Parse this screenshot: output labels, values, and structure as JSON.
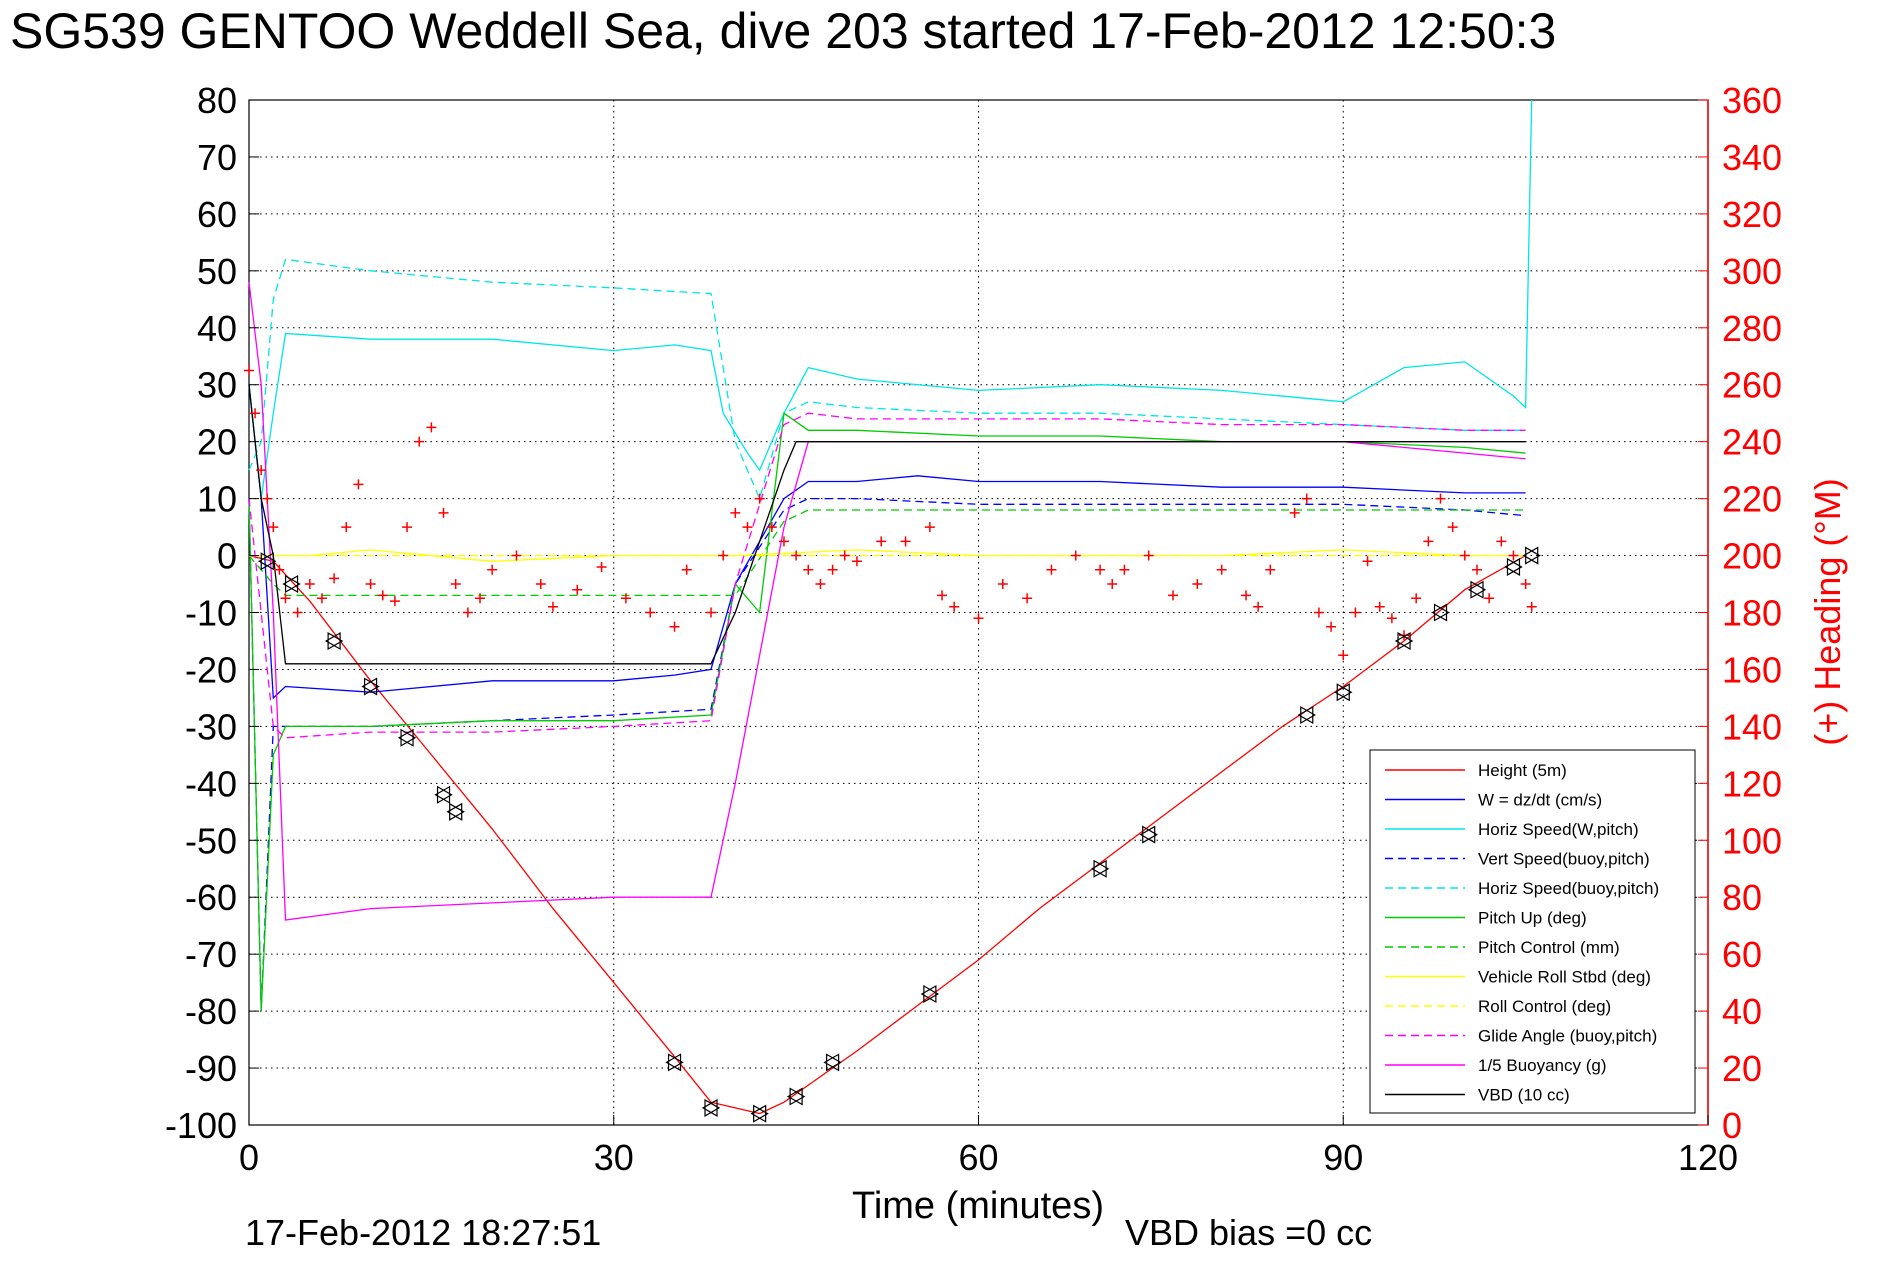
{
  "chart_data": {
    "type": "line",
    "title": "SG539 GENTOO Weddell Sea, dive 203 started 17-Feb-2012 12:50:3",
    "xlabel": "Time (minutes)",
    "ylabel": "",
    "y2label": "(+) Heading (°M)",
    "xlim": [
      0,
      120
    ],
    "ylim": [
      -100,
      80
    ],
    "y2lim": [
      0,
      360
    ],
    "xticks": [
      "0",
      "30",
      "60",
      "90",
      "120"
    ],
    "yticks": [
      "80",
      "70",
      "60",
      "50",
      "40",
      "30",
      "20",
      "10",
      "0",
      "-10",
      "-20",
      "-30",
      "-40",
      "-50",
      "-60",
      "-70",
      "-80",
      "-90",
      "-100"
    ],
    "y2ticks": [
      "360",
      "340",
      "320",
      "300",
      "280",
      "260",
      "240",
      "220",
      "200",
      "180",
      "160",
      "140",
      "120",
      "100",
      "80",
      "60",
      "40",
      "20",
      "0"
    ],
    "grid": true,
    "legend_position": "bottom-right",
    "footer_left": "17-Feb-2012 18:27:51",
    "footer_right": "VBD bias =0 cc",
    "series": [
      {
        "name": "Height (5m)",
        "color": "#ff0000",
        "style": "solid",
        "x": [
          0,
          2,
          5,
          10,
          15,
          20,
          25,
          30,
          35,
          38,
          40,
          42,
          44,
          46,
          50,
          55,
          60,
          65,
          70,
          75,
          80,
          85,
          90,
          95,
          100,
          105
        ],
        "y": [
          0,
          -1,
          -8,
          -22,
          -35,
          -48,
          -62,
          -75,
          -88,
          -96,
          -97,
          -98,
          -96,
          -93,
          -87,
          -79,
          -71,
          -62,
          -54,
          -46,
          -38,
          -30,
          -23,
          -15,
          -6,
          0
        ]
      },
      {
        "name": "W = dz/dt (cm/s)",
        "color": "#0000ff",
        "style": "solid",
        "x": [
          0,
          1,
          2,
          3,
          10,
          20,
          30,
          35,
          38,
          40,
          44,
          46,
          50,
          55,
          60,
          70,
          80,
          90,
          100,
          105
        ],
        "y": [
          30,
          10,
          -25,
          -23,
          -24,
          -22,
          -22,
          -21,
          -20,
          -5,
          10,
          13,
          13,
          14,
          13,
          13,
          12,
          12,
          11,
          11
        ]
      },
      {
        "name": "Horiz Speed(W,pitch)",
        "color": "#00e6e6",
        "style": "solid",
        "x": [
          0,
          1,
          2,
          3,
          10,
          20,
          30,
          35,
          38,
          39,
          41,
          42,
          44,
          46,
          50,
          60,
          70,
          80,
          90,
          95,
          100,
          104,
          105,
          105.5
        ],
        "y": [
          30,
          10,
          25,
          39,
          38,
          38,
          36,
          37,
          36,
          25,
          18,
          15,
          25,
          33,
          31,
          29,
          30,
          29,
          27,
          33,
          34,
          28,
          26,
          80
        ]
      },
      {
        "name": "Vert Speed(buoy,pitch)",
        "color": "#0000ff",
        "style": "dashed",
        "x": [
          0,
          1,
          2,
          3,
          10,
          20,
          30,
          38,
          40,
          44,
          46,
          50,
          60,
          70,
          80,
          90,
          100,
          105
        ],
        "y": [
          10,
          -80,
          -30,
          -30,
          -30,
          -29,
          -28,
          -27,
          -5,
          8,
          10,
          10,
          9,
          9,
          9,
          9,
          8,
          7
        ]
      },
      {
        "name": "Horiz Speed(buoy,pitch)",
        "color": "#00e6e6",
        "style": "dashed",
        "x": [
          0,
          1,
          2,
          3,
          10,
          20,
          30,
          38,
          40,
          42,
          44,
          46,
          50,
          60,
          70,
          80,
          90,
          100,
          105
        ],
        "y": [
          15,
          20,
          45,
          52,
          50,
          48,
          47,
          46,
          20,
          10,
          25,
          27,
          26,
          25,
          25,
          24,
          23,
          22,
          22
        ]
      },
      {
        "name": "Pitch Up (deg)",
        "color": "#00cc00",
        "style": "solid",
        "x": [
          0,
          1,
          2,
          3,
          10,
          20,
          30,
          38,
          40,
          42,
          44,
          46,
          50,
          60,
          70,
          80,
          90,
          100,
          105
        ],
        "y": [
          10,
          -80,
          -35,
          -30,
          -30,
          -29,
          -29,
          -28,
          -5,
          -10,
          25,
          22,
          22,
          21,
          21,
          20,
          20,
          19,
          18
        ]
      },
      {
        "name": "Pitch Control (mm)",
        "color": "#00cc00",
        "style": "dashed",
        "x": [
          0,
          2,
          3,
          38,
          40,
          44,
          46,
          105
        ],
        "y": [
          0,
          -5,
          -7,
          -7,
          -7,
          6,
          8,
          8
        ]
      },
      {
        "name": "Vehicle Roll Stbd (deg)",
        "color": "#ffff00",
        "style": "solid",
        "x": [
          0,
          5,
          10,
          20,
          30,
          40,
          50,
          60,
          70,
          80,
          90,
          100,
          105
        ],
        "y": [
          0,
          0,
          1,
          -1,
          0,
          0,
          1,
          0,
          0,
          0,
          1,
          0,
          0
        ]
      },
      {
        "name": "Roll Control (deg)",
        "color": "#ffff00",
        "style": "dashed",
        "x": [
          0,
          5,
          10,
          20,
          30,
          40,
          50,
          60,
          70,
          80,
          90,
          100,
          105
        ],
        "y": [
          0,
          0,
          0,
          0,
          0,
          0,
          0,
          0,
          0,
          0,
          0,
          0,
          0
        ]
      },
      {
        "name": "Glide Angle (buoy,pitch)",
        "color": "#ff00ff",
        "style": "dashed",
        "x": [
          0,
          2,
          3,
          10,
          20,
          30,
          38,
          40,
          44,
          46,
          50,
          60,
          70,
          80,
          90,
          100,
          105
        ],
        "y": [
          10,
          -30,
          -32,
          -31,
          -31,
          -30,
          -29,
          -5,
          23,
          25,
          24,
          24,
          24,
          23,
          23,
          22,
          22
        ]
      },
      {
        "name": "1/5 Buoyancy (g)",
        "color": "#ff00ff",
        "style": "solid",
        "x": [
          0,
          1,
          2,
          3,
          10,
          20,
          30,
          38,
          40,
          44,
          46,
          60,
          80,
          90,
          100,
          105
        ],
        "y": [
          48,
          30,
          -10,
          -64,
          -62,
          -61,
          -60,
          -60,
          -40,
          5,
          20,
          20,
          20,
          20,
          18,
          17
        ]
      },
      {
        "name": "VBD (10 cc)",
        "color": "#000000",
        "style": "solid",
        "x": [
          0,
          1,
          2,
          3,
          38,
          40,
          44,
          45,
          60,
          80,
          90,
          100,
          105
        ],
        "y": [
          30,
          10,
          0,
          -19,
          -19,
          -10,
          15,
          20,
          20,
          20,
          20,
          20,
          20
        ]
      }
    ],
    "heading": {
      "name": "(+) Heading",
      "color": "#ff0000",
      "x": [
        0,
        0.5,
        1,
        1.5,
        2,
        2.5,
        3,
        4,
        5,
        6,
        7,
        8,
        9,
        10,
        11,
        12,
        13,
        14,
        15,
        16,
        17,
        18,
        19,
        20,
        22,
        24,
        25,
        27,
        29,
        31,
        33,
        35,
        36,
        38,
        39,
        40,
        41,
        42,
        43,
        44,
        45,
        46,
        47,
        48,
        49,
        50,
        52,
        54,
        56,
        57,
        58,
        60,
        62,
        64,
        66,
        68,
        70,
        71,
        72,
        74,
        76,
        78,
        80,
        82,
        83,
        84,
        86,
        87,
        88,
        89,
        90,
        91,
        92,
        93,
        94,
        95,
        96,
        97,
        98,
        99,
        100,
        101,
        102,
        103,
        104,
        105,
        105.5
      ],
      "y": [
        265,
        250,
        230,
        220,
        210,
        195,
        185,
        180,
        190,
        185,
        192,
        210,
        225,
        190,
        186,
        184,
        210,
        240,
        245,
        215,
        190,
        180,
        185,
        195,
        200,
        190,
        182,
        188,
        196,
        185,
        180,
        175,
        195,
        180,
        200,
        215,
        210,
        220,
        210,
        205,
        200,
        195,
        190,
        195,
        200,
        198,
        205,
        205,
        210,
        186,
        182,
        178,
        190,
        185,
        195,
        200,
        195,
        190,
        195,
        200,
        186,
        190,
        195,
        186,
        182,
        195,
        215,
        220,
        180,
        175,
        165,
        180,
        198,
        182,
        178,
        172,
        185,
        205,
        220,
        210,
        200,
        195,
        185,
        205,
        200,
        190,
        182
      ]
    },
    "markers": {
      "x": [
        1.5,
        3.5,
        7,
        10,
        13,
        16,
        17,
        35,
        38,
        42,
        45,
        48,
        56,
        70,
        74,
        87,
        90,
        95,
        98,
        101,
        104,
        105.5
      ],
      "y": [
        -1,
        -5,
        -15,
        -23,
        -32,
        -42,
        -45,
        -89,
        -97,
        -98,
        -95,
        -89,
        -77,
        -55,
        -49,
        -28,
        -24,
        -15,
        -10,
        -6,
        -2,
        0
      ]
    }
  }
}
